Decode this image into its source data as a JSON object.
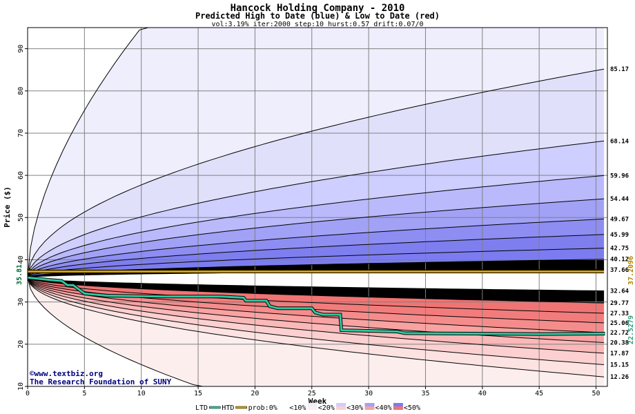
{
  "chart_data": {
    "type": "area",
    "title": "Hancock Holding Company - 2010",
    "subtitle": "Predicted High to Date (blue) &  Low to Date (red)",
    "params": "vol:3.19% iter:2000 step:10 hurst:0.57 drift:0.07/0",
    "xlabel": "Week",
    "ylabel": "Price ($)",
    "xlim": [
      0,
      51
    ],
    "ylim": [
      10,
      95
    ],
    "x_ticks": [
      0,
      5,
      10,
      15,
      20,
      25,
      30,
      35,
      40,
      45,
      50
    ],
    "y_ticks": [
      10,
      20,
      30,
      40,
      50,
      60,
      70,
      80,
      90
    ],
    "grid": true,
    "start_price": 35.81,
    "start_label": "35.81",
    "high_curve_endpoints": [
      {
        "label": "85.17",
        "value": 85.17
      },
      {
        "label": "68.14",
        "value": 68.14
      },
      {
        "label": "59.96",
        "value": 59.96
      },
      {
        "label": "54.44",
        "value": 54.44
      },
      {
        "label": "49.67",
        "value": 49.67
      },
      {
        "label": "45.99",
        "value": 45.99
      },
      {
        "label": "42.75",
        "value": 42.75
      },
      {
        "label": "40.12",
        "value": 40.12
      },
      {
        "label": "37.66",
        "value": 37.66
      }
    ],
    "low_curve_endpoints": [
      {
        "label": "32.64",
        "value": 32.64
      },
      {
        "label": "29.77",
        "value": 29.77
      },
      {
        "label": "27.33",
        "value": 27.33
      },
      {
        "label": "25.06",
        "value": 25.06
      },
      {
        "label": "22.72",
        "value": 22.72
      },
      {
        "label": "20.38",
        "value": 20.38
      },
      {
        "label": "17.87",
        "value": 17.87
      },
      {
        "label": "15.15",
        "value": 15.15
      },
      {
        "label": "12.26",
        "value": 12.26
      }
    ],
    "extreme_high_at_week10": 95,
    "extreme_low_at_week15": 10,
    "ltd_value": 37.2096,
    "ltd_label": "37.2096",
    "htd_end_label": "22.5279",
    "htd_series": [
      [
        0,
        35.8
      ],
      [
        2,
        35.2
      ],
      [
        3,
        35.0
      ],
      [
        3.5,
        34.0
      ],
      [
        4,
        34.0
      ],
      [
        4.5,
        33.0
      ],
      [
        5,
        32.0
      ],
      [
        7,
        31.5
      ],
      [
        12,
        31.3
      ],
      [
        17,
        31.3
      ],
      [
        19,
        31.0
      ],
      [
        19.2,
        30.3
      ],
      [
        21,
        30.3
      ],
      [
        21.3,
        29.0
      ],
      [
        22,
        28.5
      ],
      [
        25,
        28.5
      ],
      [
        25.3,
        27.5
      ],
      [
        26,
        27.0
      ],
      [
        27.5,
        27.0
      ],
      [
        27.6,
        23.3
      ],
      [
        32.5,
        23.0
      ],
      [
        33.2,
        22.6
      ],
      [
        39,
        22.5
      ],
      [
        45,
        22.4
      ],
      [
        50.8,
        22.5
      ]
    ],
    "watermark_line1": "©www.textbiz.org",
    "watermark_line2": "The Research Foundation of SUNY",
    "legend": {
      "ltd": "LTD",
      "htd": "HTD",
      "prob": "prob:0%",
      "bins": [
        "<10%",
        "<20%",
        "<30%",
        "<40%",
        "<50%"
      ]
    },
    "colors": {
      "blue_bands": [
        "#eeeefd",
        "#e0e0fb",
        "#ceceff",
        "#b9b9fb",
        "#a1a1f6",
        "#8d8df2",
        "#7e7eef",
        "#7c7cf0"
      ],
      "red_bands": [
        "#fdeeee",
        "#fde2e2",
        "#fcd0d0",
        "#fab8b8",
        "#f8a2a2",
        "#f58c8c",
        "#f27c7c",
        "#f07474"
      ],
      "htd_line": "#30c8a0",
      "ltd_line": "#d4a000",
      "grid": "#808080"
    }
  }
}
